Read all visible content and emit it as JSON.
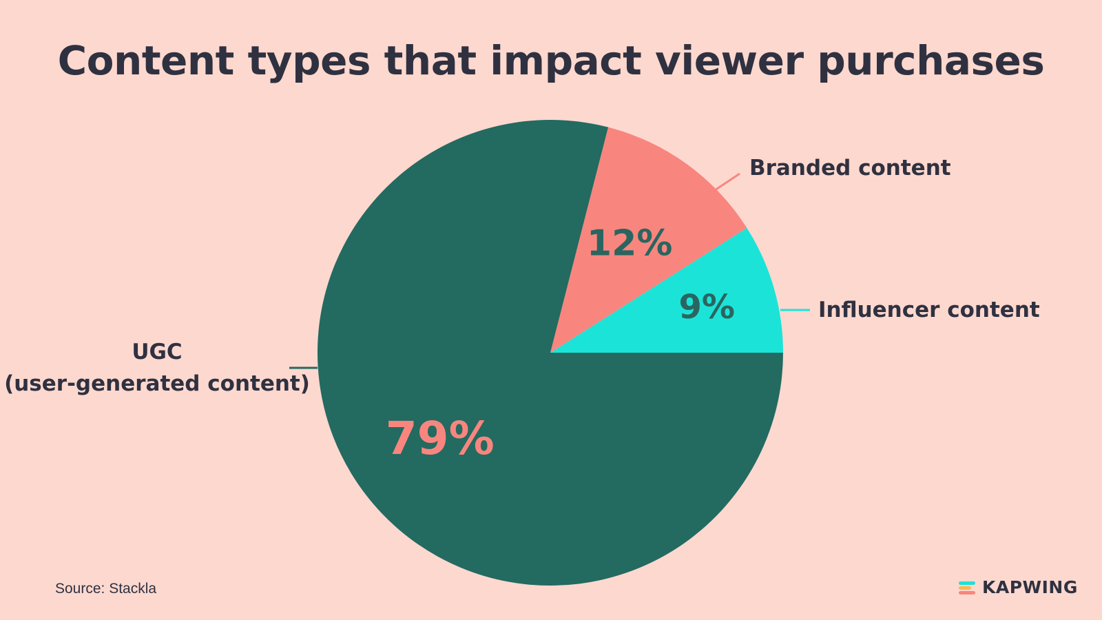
{
  "title": "Content types that impact viewer purchases",
  "chart_data": {
    "type": "pie",
    "start_angle_deg": 0,
    "direction": "counterclockwise",
    "slices": [
      {
        "name": "Influencer content",
        "value": 9,
        "label": "9%",
        "color": "#1ce3d8",
        "label_color": "#2a6560",
        "line_color": "#1ce3d8",
        "category_lines": [
          "Influencer content"
        ],
        "label_side": "right"
      },
      {
        "name": "Branded content",
        "value": 12,
        "label": "12%",
        "color": "#f8867e",
        "label_color": "#2a6560",
        "line_color": "#f8867e",
        "category_lines": [
          "Branded content"
        ],
        "label_side": "upper-right"
      },
      {
        "name": "UGC (user-generated content)",
        "value": 79,
        "label": "79%",
        "color": "#236a61",
        "label_color": "#f8867e",
        "line_color": "#236a61",
        "category_lines": [
          "UGC",
          "(user-generated content)"
        ],
        "label_side": "left"
      }
    ]
  },
  "source": "Source: Stackla",
  "logo": {
    "text": "KAPWING",
    "mark_colors": [
      "#1ce3d8",
      "#f8b84e",
      "#f8867e"
    ]
  }
}
